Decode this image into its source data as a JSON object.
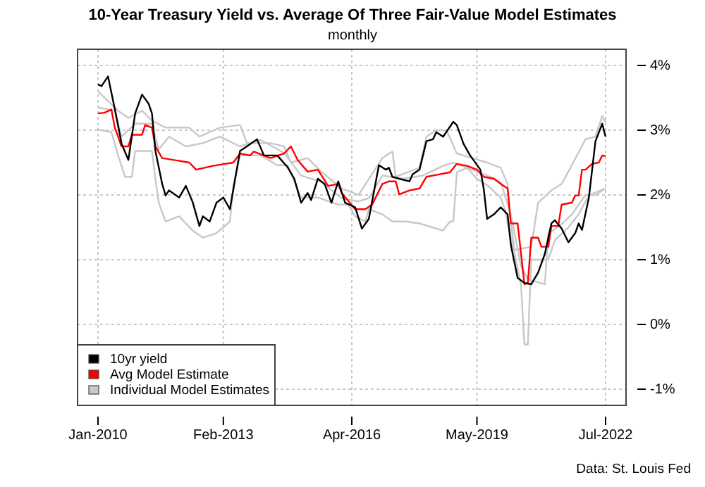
{
  "chart_data": {
    "type": "line",
    "title": "10-Year Treasury Yield vs. Average Of Three Fair-Value Model Estimates",
    "subtitle": "monthly",
    "annotations": [
      "Data: St. Louis Fed"
    ],
    "xlim": [
      "2009-07",
      "2023-01"
    ],
    "xticks": [
      {
        "value": "2010-01",
        "label": "Jan-2010"
      },
      {
        "value": "2013-02",
        "label": "Feb-2013"
      },
      {
        "value": "2016-04",
        "label": "Apr-2016"
      },
      {
        "value": "2019-05",
        "label": "May-2019"
      },
      {
        "value": "2022-07",
        "label": "Jul-2022"
      }
    ],
    "ylim": [
      -1.25,
      4.25
    ],
    "yticks": [
      {
        "value": -1,
        "label": "-1%"
      },
      {
        "value": 0,
        "label": "0%"
      },
      {
        "value": 1,
        "label": "1%"
      },
      {
        "value": 2,
        "label": "2%"
      },
      {
        "value": 3,
        "label": "3%"
      },
      {
        "value": 4,
        "label": "4%"
      }
    ],
    "grid": true,
    "legend": "bottom left",
    "series": [
      {
        "name": "Individual Model Estimates",
        "color": "#c8c8c8",
        "x": [
          "2010-01",
          "2010-07",
          "2010-10",
          "2011-02",
          "2011-05",
          "2011-09",
          "2012-04",
          "2012-07",
          "2013-01",
          "2013-07",
          "2013-09",
          "2014-04",
          "2014-08",
          "2014-10",
          "2015-03",
          "2015-07",
          "2016-01",
          "2016-06",
          "2017-01",
          "2017-04",
          "2017-05",
          "2017-12",
          "2018-02",
          "2018-05",
          "2018-08",
          "2018-11",
          "2019-08",
          "2019-12",
          "2020-02",
          "2020-03",
          "2020-04",
          "2020-09",
          "2020-11",
          "2021-03",
          "2021-06",
          "2021-09",
          "2022-01",
          "2022-04",
          "2022-06",
          "2022-07"
        ],
        "values": [
          3.6,
          3.3,
          3.19,
          3.3,
          3.15,
          3.04,
          3.04,
          2.9,
          3.04,
          3.08,
          2.8,
          2.8,
          2.75,
          2.5,
          2.57,
          2.36,
          2.1,
          2.0,
          2.57,
          2.67,
          2.28,
          2.42,
          2.9,
          3.0,
          3.0,
          2.64,
          2.5,
          2.42,
          2.17,
          1.59,
          1.15,
          1.2,
          1.88,
          2.07,
          2.17,
          2.46,
          2.86,
          2.9,
          3.22,
          3.12
        ]
      },
      {
        "color": "#c8c8c8",
        "x": [
          "2010-01",
          "2010-06",
          "2010-08",
          "2010-12",
          "2011-05",
          "2011-07",
          "2011-10",
          "2012-03",
          "2012-08",
          "2013-01",
          "2013-07",
          "2014-01",
          "2014-08",
          "2015-01",
          "2015-07",
          "2016-01",
          "2016-06",
          "2016-09",
          "2017-01",
          "2017-07",
          "2018-01",
          "2018-07",
          "2018-10",
          "2019-03",
          "2019-08",
          "2019-12",
          "2020-03",
          "2020-06",
          "2020-08",
          "2021-01",
          "2021-02",
          "2021-06",
          "2021-09",
          "2022-01",
          "2022-04",
          "2022-07"
        ],
        "values": [
          3.35,
          3.3,
          2.9,
          3.1,
          3.1,
          2.7,
          2.9,
          2.75,
          2.8,
          2.9,
          2.75,
          2.85,
          2.65,
          2.3,
          2.2,
          1.95,
          1.9,
          1.95,
          2.3,
          2.25,
          2.3,
          2.45,
          2.5,
          2.4,
          2.3,
          2.2,
          1.7,
          0.9,
          0.7,
          0.62,
          1.4,
          1.55,
          1.7,
          2.0,
          2.0,
          2.1
        ]
      },
      {
        "color": "#c8c8c8",
        "x": [
          "2010-01",
          "2010-05",
          "2010-07",
          "2010-09",
          "2010-11",
          "2010-12",
          "2011-05",
          "2011-06",
          "2011-07",
          "2011-09",
          "2012-01",
          "2012-05",
          "2012-08",
          "2012-12",
          "2013-04",
          "2013-05",
          "2013-07",
          "2014-01",
          "2014-06",
          "2014-09",
          "2015-01",
          "2015-06",
          "2015-12",
          "2016-03",
          "2016-05",
          "2016-08",
          "2016-09",
          "2017-01",
          "2017-04",
          "2017-08",
          "2017-12",
          "2018-07",
          "2018-09",
          "2018-10",
          "2018-11",
          "2019-02",
          "2019-05",
          "2019-08",
          "2019-12",
          "2020-01",
          "2020-04",
          "2020-06",
          "2020-07",
          "2020-08",
          "2020-09",
          "2021-02",
          "2021-04",
          "2021-08",
          "2021-11",
          "2022-02",
          "2022-07"
        ],
        "values": [
          3.01,
          2.97,
          2.61,
          2.28,
          2.28,
          2.68,
          2.68,
          2.25,
          1.88,
          1.59,
          1.67,
          1.45,
          1.34,
          1.41,
          1.59,
          2.14,
          2.61,
          2.61,
          2.46,
          2.46,
          1.96,
          1.96,
          1.85,
          1.85,
          1.67,
          1.59,
          1.78,
          1.7,
          1.59,
          1.59,
          1.56,
          1.45,
          1.59,
          1.59,
          2.35,
          2.42,
          2.25,
          2.15,
          1.96,
          1.81,
          1.12,
          0.6,
          -0.31,
          -0.31,
          1.0,
          1.0,
          1.3,
          1.5,
          1.7,
          2.0,
          2.1
        ]
      },
      {
        "name": "Avg Model Estimate",
        "color": "#ff0000",
        "x": [
          "2010-01",
          "2010-03",
          "2010-05",
          "2010-06",
          "2010-08",
          "2010-10",
          "2010-11",
          "2011-02",
          "2011-03",
          "2011-05",
          "2011-06",
          "2011-08",
          "2012-04",
          "2012-06",
          "2012-11",
          "2013-05",
          "2013-07",
          "2013-10",
          "2013-11",
          "2014-04",
          "2014-08",
          "2014-10",
          "2014-12",
          "2015-03",
          "2015-06",
          "2015-09",
          "2015-12",
          "2016-01",
          "2016-05",
          "2016-08",
          "2016-10",
          "2017-01",
          "2017-03",
          "2017-05",
          "2017-06",
          "2017-09",
          "2017-12",
          "2018-02",
          "2018-06",
          "2018-09",
          "2018-11",
          "2019-02",
          "2019-05",
          "2019-07",
          "2019-10",
          "2019-12",
          "2020-02",
          "2020-03",
          "2020-05",
          "2020-06",
          "2020-07",
          "2020-08",
          "2020-09",
          "2020-11",
          "2020-12",
          "2021-02",
          "2021-03",
          "2021-05",
          "2021-06",
          "2021-09",
          "2021-10",
          "2021-11",
          "2021-12",
          "2022-01",
          "2022-03",
          "2022-05",
          "2022-06",
          "2022-07"
        ],
        "values": [
          3.26,
          3.27,
          3.32,
          3.04,
          2.75,
          2.75,
          2.93,
          2.93,
          3.08,
          3.04,
          2.75,
          2.57,
          2.5,
          2.39,
          2.45,
          2.5,
          2.64,
          2.61,
          2.67,
          2.57,
          2.64,
          2.75,
          2.54,
          2.36,
          2.39,
          2.14,
          2.17,
          2.03,
          1.78,
          1.78,
          1.85,
          2.17,
          2.21,
          2.21,
          2.01,
          2.07,
          2.1,
          2.28,
          2.32,
          2.35,
          2.48,
          2.45,
          2.39,
          2.28,
          2.25,
          2.17,
          2.1,
          1.56,
          1.56,
          1.09,
          0.62,
          0.64,
          1.34,
          1.34,
          1.2,
          1.2,
          1.52,
          1.52,
          1.85,
          1.88,
          1.99,
          1.99,
          2.39,
          2.39,
          2.48,
          2.5,
          2.61,
          2.6
        ]
      },
      {
        "name": "10yr yield",
        "color": "#000000",
        "x": [
          "2010-01",
          "2010-02",
          "2010-04",
          "2010-06",
          "2010-08",
          "2010-10",
          "2010-12",
          "2011-02",
          "2011-04",
          "2011-05",
          "2011-06",
          "2011-08",
          "2011-09",
          "2011-10",
          "2012-01",
          "2012-03",
          "2012-05",
          "2012-07",
          "2012-08",
          "2012-10",
          "2012-12",
          "2013-02",
          "2013-04",
          "2013-07",
          "2013-09",
          "2013-12",
          "2014-02",
          "2014-06",
          "2014-09",
          "2014-11",
          "2015-01",
          "2015-03",
          "2015-04",
          "2015-06",
          "2015-08",
          "2015-10",
          "2015-12",
          "2016-02",
          "2016-05",
          "2016-07",
          "2016-09",
          "2016-12",
          "2017-02",
          "2017-03",
          "2017-04",
          "2017-06",
          "2017-09",
          "2017-10",
          "2017-12",
          "2018-02",
          "2018-04",
          "2018-05",
          "2018-07",
          "2018-10",
          "2018-11",
          "2019-01",
          "2019-03",
          "2019-06",
          "2019-07",
          "2019-08",
          "2019-10",
          "2019-12",
          "2020-02",
          "2020-03",
          "2020-05",
          "2020-07",
          "2020-09",
          "2020-11",
          "2021-01",
          "2021-03",
          "2021-04",
          "2021-06",
          "2021-08",
          "2021-10",
          "2021-11",
          "2021-12",
          "2022-02",
          "2022-04",
          "2022-06",
          "2022-07"
        ],
        "values": [
          3.71,
          3.68,
          3.83,
          3.33,
          2.79,
          2.54,
          3.26,
          3.55,
          3.41,
          3.26,
          2.68,
          2.17,
          1.99,
          2.07,
          1.96,
          2.14,
          1.89,
          1.52,
          1.67,
          1.59,
          1.88,
          1.96,
          1.78,
          2.68,
          2.75,
          2.86,
          2.61,
          2.61,
          2.43,
          2.25,
          1.88,
          2.03,
          1.92,
          2.25,
          2.17,
          1.88,
          2.21,
          1.88,
          1.81,
          1.48,
          1.63,
          2.46,
          2.39,
          2.42,
          2.28,
          2.25,
          2.21,
          2.32,
          2.39,
          2.83,
          2.86,
          2.97,
          2.9,
          3.13,
          3.08,
          2.79,
          2.61,
          2.39,
          2.1,
          1.63,
          1.7,
          1.81,
          1.7,
          1.23,
          0.72,
          0.64,
          0.62,
          0.8,
          1.09,
          1.56,
          1.61,
          1.48,
          1.27,
          1.41,
          1.56,
          1.46,
          1.96,
          2.83,
          3.1,
          2.9
        ]
      }
    ]
  }
}
